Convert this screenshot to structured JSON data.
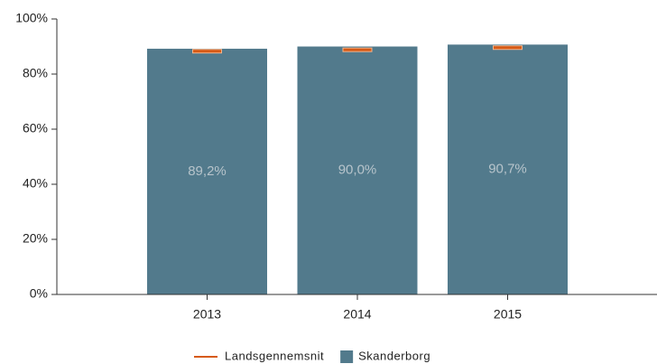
{
  "chart_data": {
    "type": "bar",
    "categories": [
      "2013",
      "2014",
      "2015"
    ],
    "series": [
      {
        "name": "Landsgennemsnit",
        "color": "#d65a16",
        "mark": "tick",
        "values": [
          88.3,
          88.8,
          89.6
        ]
      },
      {
        "name": "Skanderborg",
        "color": "#527a8c",
        "mark": "bar",
        "values": [
          89.2,
          90.0,
          90.7
        ],
        "value_labels": [
          "89,2%",
          "90,0%",
          "90,7%"
        ]
      }
    ],
    "ylim": [
      0,
      100
    ],
    "yticks": [
      {
        "value": 0,
        "label": "0%"
      },
      {
        "value": 20,
        "label": "20%"
      },
      {
        "value": 40,
        "label": "40%"
      },
      {
        "value": 60,
        "label": "60%"
      },
      {
        "value": 80,
        "label": "80%"
      },
      {
        "value": 100,
        "label": "100%"
      }
    ],
    "legend": "bottom"
  }
}
